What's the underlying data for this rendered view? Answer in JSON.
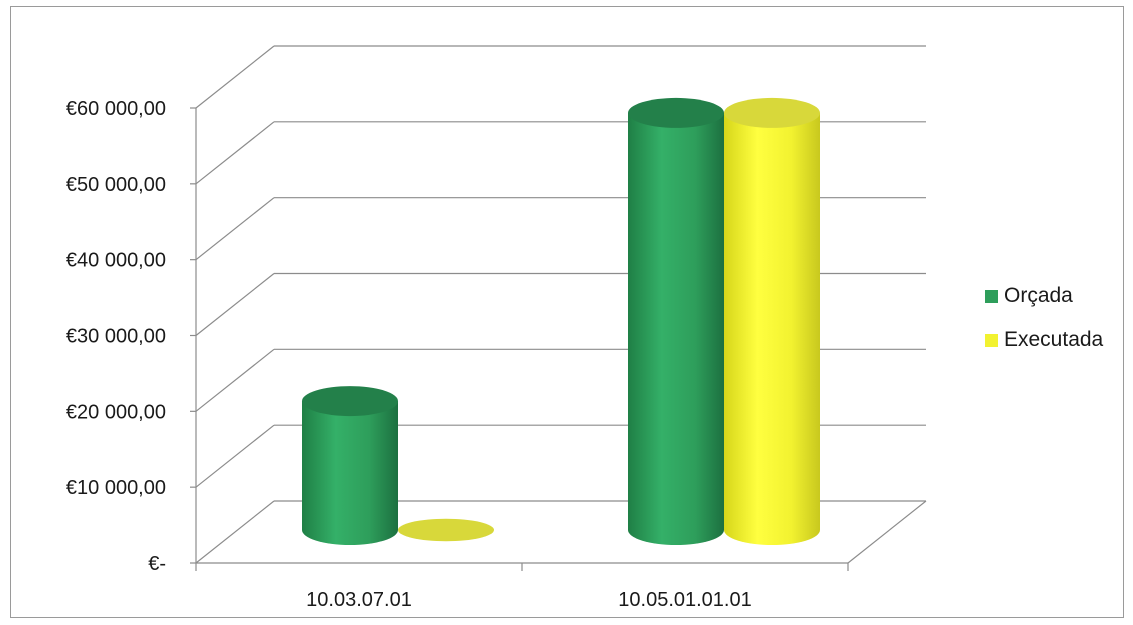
{
  "chart_data": {
    "type": "bar",
    "style": "3d-cylinder",
    "categories": [
      "10.03.07.01",
      "10.05.01.01.01"
    ],
    "series": [
      {
        "name": "Orçada",
        "color": "#2e9e5b",
        "values": [
          17000,
          55000
        ]
      },
      {
        "name": "Executada",
        "color": "#f2f230",
        "values": [
          0,
          55000
        ]
      }
    ],
    "yticks": [
      "€-",
      "€10 000,00",
      "€20 000,00",
      "€30 000,00",
      "€40 000,00",
      "€50 000,00",
      "€60 000,00"
    ],
    "ylim": [
      0,
      60000
    ],
    "grid": true,
    "legend_position": "right"
  }
}
